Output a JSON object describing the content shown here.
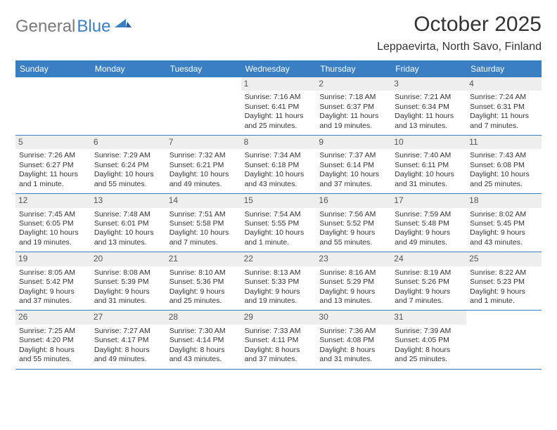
{
  "brand": {
    "part1": "General",
    "part2": "Blue"
  },
  "title": "October 2025",
  "location": "Leppaevirta, North Savo, Finland",
  "colors": {
    "header_bg": "#3a7fc4",
    "header_text": "#ffffff",
    "num_bg": "#eeeeee",
    "divider": "#3a7fc4",
    "body_text": "#333333",
    "logo_gray": "#7a7a7a",
    "logo_blue": "#3a7fc4"
  },
  "typography": {
    "title_fontsize": 30,
    "location_fontsize": 16,
    "dayheader_fontsize": 12,
    "cell_fontsize": 10.5,
    "logo_fontsize": 24
  },
  "day_names": [
    "Sunday",
    "Monday",
    "Tuesday",
    "Wednesday",
    "Thursday",
    "Friday",
    "Saturday"
  ],
  "weeks": [
    [
      {
        "num": "",
        "lines": [
          "",
          "",
          ""
        ]
      },
      {
        "num": "",
        "lines": [
          "",
          "",
          ""
        ]
      },
      {
        "num": "",
        "lines": [
          "",
          "",
          ""
        ]
      },
      {
        "num": "1",
        "lines": [
          "Sunrise: 7:16 AM",
          "Sunset: 6:41 PM",
          "Daylight: 11 hours and 25 minutes."
        ]
      },
      {
        "num": "2",
        "lines": [
          "Sunrise: 7:18 AM",
          "Sunset: 6:37 PM",
          "Daylight: 11 hours and 19 minutes."
        ]
      },
      {
        "num": "3",
        "lines": [
          "Sunrise: 7:21 AM",
          "Sunset: 6:34 PM",
          "Daylight: 11 hours and 13 minutes."
        ]
      },
      {
        "num": "4",
        "lines": [
          "Sunrise: 7:24 AM",
          "Sunset: 6:31 PM",
          "Daylight: 11 hours and 7 minutes."
        ]
      }
    ],
    [
      {
        "num": "5",
        "lines": [
          "Sunrise: 7:26 AM",
          "Sunset: 6:27 PM",
          "Daylight: 11 hours and 1 minute."
        ]
      },
      {
        "num": "6",
        "lines": [
          "Sunrise: 7:29 AM",
          "Sunset: 6:24 PM",
          "Daylight: 10 hours and 55 minutes."
        ]
      },
      {
        "num": "7",
        "lines": [
          "Sunrise: 7:32 AM",
          "Sunset: 6:21 PM",
          "Daylight: 10 hours and 49 minutes."
        ]
      },
      {
        "num": "8",
        "lines": [
          "Sunrise: 7:34 AM",
          "Sunset: 6:18 PM",
          "Daylight: 10 hours and 43 minutes."
        ]
      },
      {
        "num": "9",
        "lines": [
          "Sunrise: 7:37 AM",
          "Sunset: 6:14 PM",
          "Daylight: 10 hours and 37 minutes."
        ]
      },
      {
        "num": "10",
        "lines": [
          "Sunrise: 7:40 AM",
          "Sunset: 6:11 PM",
          "Daylight: 10 hours and 31 minutes."
        ]
      },
      {
        "num": "11",
        "lines": [
          "Sunrise: 7:43 AM",
          "Sunset: 6:08 PM",
          "Daylight: 10 hours and 25 minutes."
        ]
      }
    ],
    [
      {
        "num": "12",
        "lines": [
          "Sunrise: 7:45 AM",
          "Sunset: 6:05 PM",
          "Daylight: 10 hours and 19 minutes."
        ]
      },
      {
        "num": "13",
        "lines": [
          "Sunrise: 7:48 AM",
          "Sunset: 6:01 PM",
          "Daylight: 10 hours and 13 minutes."
        ]
      },
      {
        "num": "14",
        "lines": [
          "Sunrise: 7:51 AM",
          "Sunset: 5:58 PM",
          "Daylight: 10 hours and 7 minutes."
        ]
      },
      {
        "num": "15",
        "lines": [
          "Sunrise: 7:54 AM",
          "Sunset: 5:55 PM",
          "Daylight: 10 hours and 1 minute."
        ]
      },
      {
        "num": "16",
        "lines": [
          "Sunrise: 7:56 AM",
          "Sunset: 5:52 PM",
          "Daylight: 9 hours and 55 minutes."
        ]
      },
      {
        "num": "17",
        "lines": [
          "Sunrise: 7:59 AM",
          "Sunset: 5:48 PM",
          "Daylight: 9 hours and 49 minutes."
        ]
      },
      {
        "num": "18",
        "lines": [
          "Sunrise: 8:02 AM",
          "Sunset: 5:45 PM",
          "Daylight: 9 hours and 43 minutes."
        ]
      }
    ],
    [
      {
        "num": "19",
        "lines": [
          "Sunrise: 8:05 AM",
          "Sunset: 5:42 PM",
          "Daylight: 9 hours and 37 minutes."
        ]
      },
      {
        "num": "20",
        "lines": [
          "Sunrise: 8:08 AM",
          "Sunset: 5:39 PM",
          "Daylight: 9 hours and 31 minutes."
        ]
      },
      {
        "num": "21",
        "lines": [
          "Sunrise: 8:10 AM",
          "Sunset: 5:36 PM",
          "Daylight: 9 hours and 25 minutes."
        ]
      },
      {
        "num": "22",
        "lines": [
          "Sunrise: 8:13 AM",
          "Sunset: 5:33 PM",
          "Daylight: 9 hours and 19 minutes."
        ]
      },
      {
        "num": "23",
        "lines": [
          "Sunrise: 8:16 AM",
          "Sunset: 5:29 PM",
          "Daylight: 9 hours and 13 minutes."
        ]
      },
      {
        "num": "24",
        "lines": [
          "Sunrise: 8:19 AM",
          "Sunset: 5:26 PM",
          "Daylight: 9 hours and 7 minutes."
        ]
      },
      {
        "num": "25",
        "lines": [
          "Sunrise: 8:22 AM",
          "Sunset: 5:23 PM",
          "Daylight: 9 hours and 1 minute."
        ]
      }
    ],
    [
      {
        "num": "26",
        "lines": [
          "Sunrise: 7:25 AM",
          "Sunset: 4:20 PM",
          "Daylight: 8 hours and 55 minutes."
        ]
      },
      {
        "num": "27",
        "lines": [
          "Sunrise: 7:27 AM",
          "Sunset: 4:17 PM",
          "Daylight: 8 hours and 49 minutes."
        ]
      },
      {
        "num": "28",
        "lines": [
          "Sunrise: 7:30 AM",
          "Sunset: 4:14 PM",
          "Daylight: 8 hours and 43 minutes."
        ]
      },
      {
        "num": "29",
        "lines": [
          "Sunrise: 7:33 AM",
          "Sunset: 4:11 PM",
          "Daylight: 8 hours and 37 minutes."
        ]
      },
      {
        "num": "30",
        "lines": [
          "Sunrise: 7:36 AM",
          "Sunset: 4:08 PM",
          "Daylight: 8 hours and 31 minutes."
        ]
      },
      {
        "num": "31",
        "lines": [
          "Sunrise: 7:39 AM",
          "Sunset: 4:05 PM",
          "Daylight: 8 hours and 25 minutes."
        ]
      },
      {
        "num": "",
        "lines": [
          "",
          "",
          ""
        ]
      }
    ]
  ]
}
